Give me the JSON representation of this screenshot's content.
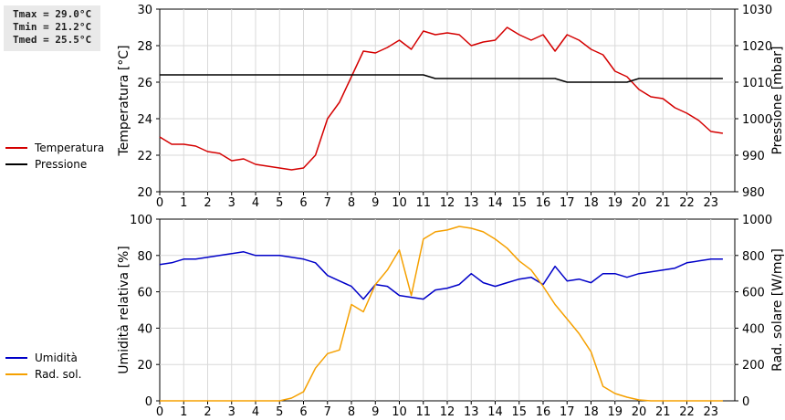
{
  "stats": {
    "tmax": "Tmax = 29.0°C",
    "tmin": "Tmin = 21.2°C",
    "tmed": "Tmed = 25.5°C"
  },
  "chart_data": [
    {
      "type": "line",
      "xlim": [
        0,
        24
      ],
      "x_ticks": [
        "0",
        "1",
        "2",
        "3",
        "4",
        "5",
        "6",
        "7",
        "8",
        "9",
        "10",
        "11",
        "12",
        "13",
        "14",
        "15",
        "16",
        "17",
        "18",
        "19",
        "20",
        "21",
        "22",
        "23"
      ],
      "ylabel": "Temperatura [°C]",
      "ylim": [
        20,
        30
      ],
      "y_ticks": [
        "20",
        "22",
        "24",
        "26",
        "28",
        "30"
      ],
      "y2label": "Pressione [mbar]",
      "y2lim": [
        980,
        1030
      ],
      "y2_ticks": [
        "980",
        "990",
        "1000",
        "1010",
        "1020",
        "1030"
      ],
      "grid": true,
      "legend_position": "left",
      "series": [
        {
          "name": "Temperatura",
          "axis": "left",
          "color": "#d40000",
          "x": [
            0,
            0.5,
            1,
            1.5,
            2,
            2.5,
            3,
            3.5,
            4,
            4.5,
            5,
            5.5,
            6,
            6.5,
            7,
            7.5,
            8,
            8.5,
            9,
            9.5,
            10,
            10.5,
            11,
            11.5,
            12,
            12.5,
            13,
            13.5,
            14,
            14.5,
            15,
            15.5,
            16,
            16.5,
            17,
            17.5,
            18,
            18.5,
            19,
            19.5,
            20,
            20.5,
            21,
            21.5,
            22,
            22.5,
            23,
            23.5
          ],
          "values": [
            23.0,
            22.6,
            22.6,
            22.5,
            22.2,
            22.1,
            21.7,
            21.8,
            21.5,
            21.4,
            21.3,
            21.2,
            21.3,
            22.0,
            24.0,
            24.9,
            26.3,
            27.7,
            27.6,
            27.9,
            28.3,
            27.8,
            28.8,
            28.6,
            28.7,
            28.6,
            28.0,
            28.2,
            28.3,
            29.0,
            28.6,
            28.3,
            28.6,
            27.7,
            28.6,
            28.3,
            27.8,
            27.5,
            26.6,
            26.3,
            25.6,
            25.2,
            25.1,
            24.6,
            24.3,
            23.9,
            23.3,
            23.2
          ]
        },
        {
          "name": "Pressione",
          "axis": "right",
          "color": "#000000",
          "x": [
            0,
            1,
            2,
            3,
            4,
            5,
            6,
            7,
            8,
            9,
            10,
            11,
            11.5,
            12,
            13,
            14,
            15,
            16,
            16.5,
            17,
            18,
            19,
            19.5,
            20,
            21,
            22,
            23,
            23.5
          ],
          "values": [
            1012,
            1012,
            1012,
            1012,
            1012,
            1012,
            1012,
            1012,
            1012,
            1012,
            1012,
            1012,
            1011,
            1011,
            1011,
            1011,
            1011,
            1011,
            1011,
            1010,
            1010,
            1010,
            1010,
            1011,
            1011,
            1011,
            1011,
            1011
          ]
        }
      ]
    },
    {
      "type": "line",
      "xlim": [
        0,
        24
      ],
      "x_ticks": [
        "0",
        "1",
        "2",
        "3",
        "4",
        "5",
        "6",
        "7",
        "8",
        "9",
        "10",
        "11",
        "12",
        "13",
        "14",
        "15",
        "16",
        "17",
        "18",
        "19",
        "20",
        "21",
        "22",
        "23"
      ],
      "ylabel": "Umidità relativa [%]",
      "ylim": [
        0,
        100
      ],
      "y_ticks": [
        "0",
        "20",
        "40",
        "60",
        "80",
        "100"
      ],
      "y2label": "Rad. solare [W/mq]",
      "y2lim": [
        0,
        1000
      ],
      "y2_ticks": [
        "0",
        "200",
        "400",
        "600",
        "800",
        "1000"
      ],
      "grid": true,
      "legend_position": "left",
      "series": [
        {
          "name": "Umidità",
          "axis": "left",
          "color": "#0000c8",
          "x": [
            0,
            0.5,
            1,
            1.5,
            2,
            2.5,
            3,
            3.5,
            4,
            4.5,
            5,
            5.5,
            6,
            6.5,
            7,
            7.5,
            8,
            8.5,
            9,
            9.5,
            10,
            10.5,
            11,
            11.5,
            12,
            12.5,
            13,
            13.5,
            14,
            14.5,
            15,
            15.5,
            16,
            16.5,
            17,
            17.5,
            18,
            18.5,
            19,
            19.5,
            20,
            20.5,
            21,
            21.5,
            22,
            22.5,
            23,
            23.5
          ],
          "values": [
            75,
            76,
            78,
            78,
            79,
            80,
            81,
            82,
            80,
            80,
            80,
            79,
            78,
            76,
            69,
            66,
            63,
            56,
            64,
            63,
            58,
            57,
            56,
            61,
            62,
            64,
            70,
            65,
            63,
            65,
            67,
            68,
            64,
            74,
            66,
            67,
            65,
            70,
            70,
            68,
            70,
            71,
            72,
            73,
            76,
            77,
            78,
            78
          ]
        },
        {
          "name": "Rad. sol.",
          "axis": "right",
          "color": "#f5a000",
          "x": [
            0,
            0.5,
            1,
            1.5,
            2,
            2.5,
            3,
            3.5,
            4,
            4.5,
            5,
            5.5,
            6,
            6.5,
            7,
            7.5,
            8,
            8.5,
            9,
            9.5,
            10,
            10.5,
            11,
            11.5,
            12,
            12.5,
            13,
            13.5,
            14,
            14.5,
            15,
            15.5,
            16,
            16.5,
            17,
            17.5,
            18,
            18.5,
            19,
            19.5,
            20,
            20.5,
            21,
            21.5,
            22,
            22.5,
            23,
            23.5
          ],
          "values": [
            0,
            0,
            0,
            0,
            0,
            0,
            0,
            0,
            0,
            0,
            0,
            15,
            50,
            180,
            260,
            280,
            530,
            490,
            640,
            720,
            830,
            580,
            890,
            930,
            940,
            960,
            950,
            930,
            890,
            840,
            770,
            720,
            630,
            530,
            450,
            370,
            270,
            80,
            40,
            20,
            5,
            0,
            0,
            0,
            0,
            0,
            0,
            0
          ]
        }
      ]
    }
  ]
}
